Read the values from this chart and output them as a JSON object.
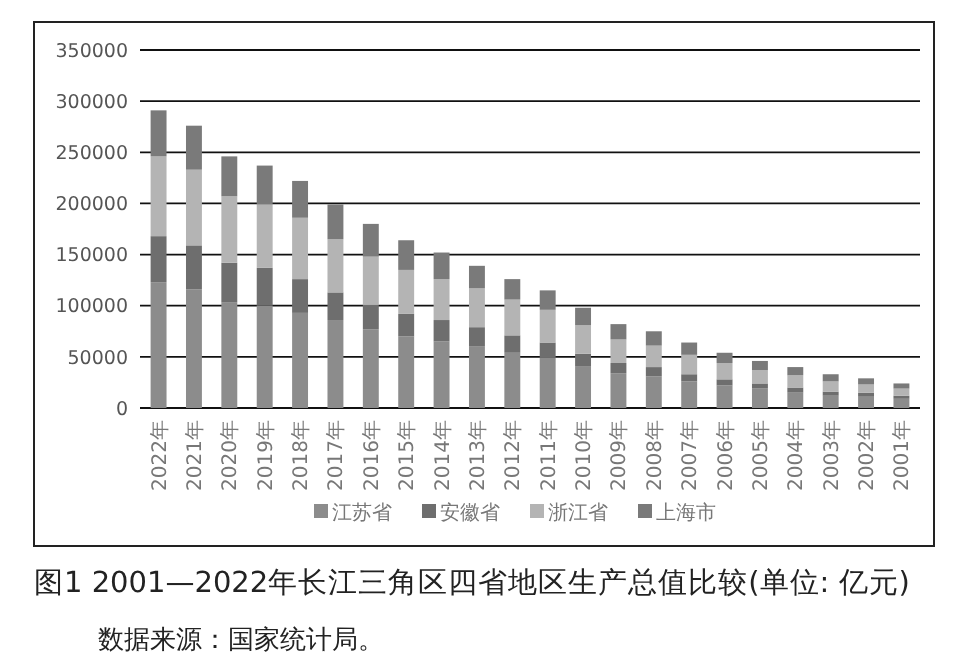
{
  "chart_data": {
    "type": "bar",
    "stacked": true,
    "categories": [
      "2022年",
      "2021年",
      "2020年",
      "2019年",
      "2018年",
      "2017年",
      "2016年",
      "2015年",
      "2014年",
      "2013年",
      "2012年",
      "2011年",
      "2010年",
      "2009年",
      "2008年",
      "2007年",
      "2006年",
      "2005年",
      "2004年",
      "2003年",
      "2002年",
      "2001年"
    ],
    "series": [
      {
        "name": "江苏省",
        "color": "#8c8c8c",
        "values": [
          123000,
          116000,
          103000,
          100000,
          93000,
          86000,
          77000,
          70000,
          65000,
          60000,
          54000,
          49000,
          41000,
          34000,
          31000,
          26000,
          22000,
          19000,
          15000,
          12000,
          11000,
          9000
        ]
      },
      {
        "name": "安徽省",
        "color": "#6e6e6e",
        "values": [
          45000,
          43000,
          39000,
          37000,
          33000,
          27000,
          24000,
          22000,
          21000,
          19000,
          17000,
          15000,
          12000,
          10000,
          9000,
          7000,
          6000,
          5000,
          5000,
          4000,
          4000,
          3000
        ]
      },
      {
        "name": "浙江省",
        "color": "#b4b4b4",
        "values": [
          78000,
          74000,
          65000,
          62000,
          60000,
          52000,
          47000,
          43000,
          40000,
          38000,
          35000,
          32000,
          28000,
          23000,
          21000,
          19000,
          16000,
          13000,
          12000,
          10000,
          8000,
          7000
        ]
      },
      {
        "name": "上海市",
        "color": "#7a7a7a",
        "values": [
          45000,
          43000,
          39000,
          38000,
          36000,
          34000,
          32000,
          29000,
          26000,
          22000,
          20000,
          19000,
          17000,
          15000,
          14000,
          12000,
          10000,
          9000,
          8000,
          7000,
          6000,
          5000
        ]
      }
    ],
    "ylim": [
      0,
      350000
    ],
    "yticks": [
      0,
      50000,
      100000,
      150000,
      200000,
      250000,
      300000,
      350000
    ],
    "grid": "y",
    "legend": "bottom",
    "annotations": [
      "图1  2001—2022年长江三角区四省地区生产总值比较(单位: 亿元)",
      "数据来源：国家统计局。"
    ]
  }
}
